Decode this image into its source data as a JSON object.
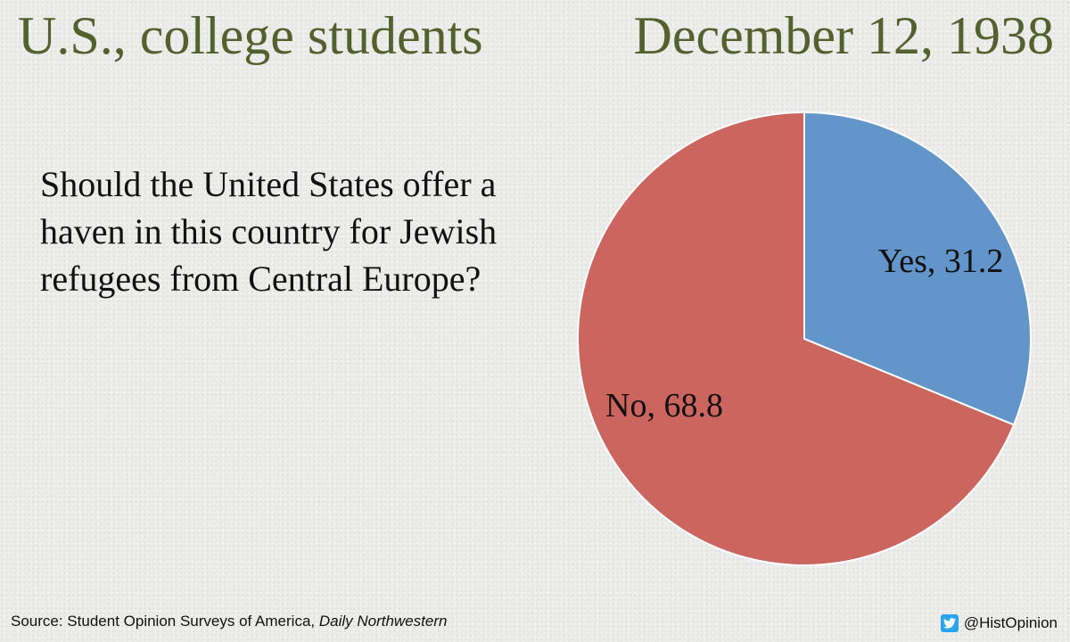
{
  "header": {
    "left_title": "U.S., college students",
    "right_title": "December 12, 1938"
  },
  "question": "Should the United States offer a haven in this country for Jewish refugees from Central Europe?",
  "chart_data": {
    "type": "pie",
    "start_angle_deg": 0,
    "direction": "clockwise",
    "slices": [
      {
        "label": "Yes, 31.2",
        "value": 31.2,
        "color": "#6295c9"
      },
      {
        "label": "No, 68.8",
        "value": 68.8,
        "color": "#cb655e"
      }
    ]
  },
  "footer": {
    "source_prefix": "Source: Student Opinion Surveys of America, ",
    "source_publication": "Daily Northwestern",
    "handle": "@HistOpinion",
    "icon": "twitter-bird-icon",
    "icon_color": "#2aa3ef"
  }
}
